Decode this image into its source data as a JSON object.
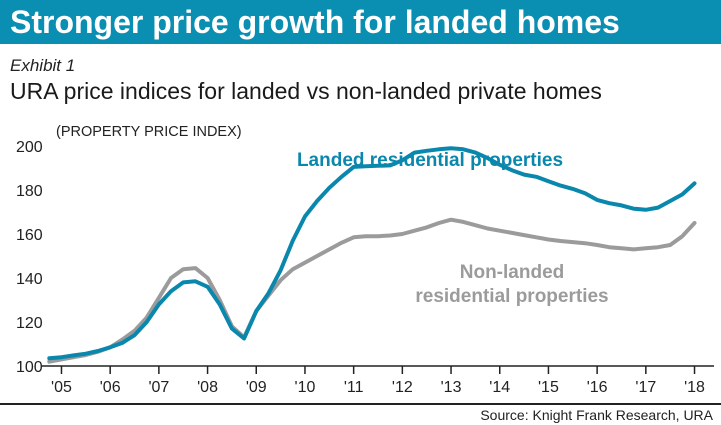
{
  "headline": "Stronger price growth for landed homes",
  "exhibit": "Exhibit 1",
  "subtitle": "URA price indices for landed vs non-landed private homes",
  "source": "Source: Knight Frank Research, URA",
  "colors": {
    "banner": "#0a8fb3",
    "landed": "#0a87ad",
    "nonlanded": "#9b9b9b",
    "text": "#222222"
  },
  "chart_data": {
    "type": "line",
    "ylabel": "(PROPERTY PRICE INDEX)",
    "ylim": [
      100,
      200
    ],
    "yticks": [
      100,
      120,
      140,
      160,
      180,
      200
    ],
    "xlim": [
      2004.6,
      2018.4
    ],
    "xticks": [
      {
        "label": "'05",
        "value": 2005
      },
      {
        "label": "'06",
        "value": 2006
      },
      {
        "label": "'07",
        "value": 2007
      },
      {
        "label": "'08",
        "value": 2008
      },
      {
        "label": "'09",
        "value": 2009
      },
      {
        "label": "'10",
        "value": 2010
      },
      {
        "label": "'11",
        "value": 2011
      },
      {
        "label": "'12",
        "value": 2012
      },
      {
        "label": "'13",
        "value": 2013
      },
      {
        "label": "'14",
        "value": 2014
      },
      {
        "label": "'15",
        "value": 2015
      },
      {
        "label": "'16",
        "value": 2016
      },
      {
        "label": "'17",
        "value": 2017
      },
      {
        "label": "'18",
        "value": 2018
      }
    ],
    "grid": false,
    "series": [
      {
        "name": "Landed residential properties",
        "points": [
          [
            2004.75,
            103.5
          ],
          [
            2005.0,
            104.0
          ],
          [
            2005.25,
            104.8
          ],
          [
            2005.5,
            105.6
          ],
          [
            2005.75,
            106.8
          ],
          [
            2006.0,
            108.5
          ],
          [
            2006.25,
            110.5
          ],
          [
            2006.5,
            114.0
          ],
          [
            2006.75,
            120.0
          ],
          [
            2007.0,
            128.0
          ],
          [
            2007.25,
            134.0
          ],
          [
            2007.5,
            138.0
          ],
          [
            2007.75,
            138.5
          ],
          [
            2008.0,
            136.0
          ],
          [
            2008.25,
            128.0
          ],
          [
            2008.5,
            117.0
          ],
          [
            2008.75,
            112.5
          ],
          [
            2009.0,
            125.0
          ],
          [
            2009.25,
            133.0
          ],
          [
            2009.5,
            143.5
          ],
          [
            2009.75,
            157.0
          ],
          [
            2010.0,
            168.0
          ],
          [
            2010.25,
            175.0
          ],
          [
            2010.5,
            181.0
          ],
          [
            2010.75,
            186.0
          ],
          [
            2011.0,
            190.5
          ],
          [
            2011.25,
            190.8
          ],
          [
            2011.5,
            191.0
          ],
          [
            2011.75,
            191.2
          ],
          [
            2012.0,
            193.5
          ],
          [
            2012.25,
            197.0
          ],
          [
            2012.5,
            197.8
          ],
          [
            2012.75,
            198.5
          ],
          [
            2013.0,
            199.0
          ],
          [
            2013.25,
            198.5
          ],
          [
            2013.5,
            197.0
          ],
          [
            2013.75,
            194.5
          ],
          [
            2014.0,
            191.5
          ],
          [
            2014.25,
            189.0
          ],
          [
            2014.5,
            187.0
          ],
          [
            2014.75,
            186.0
          ],
          [
            2015.0,
            184.0
          ],
          [
            2015.25,
            182.0
          ],
          [
            2015.5,
            180.5
          ],
          [
            2015.75,
            178.5
          ],
          [
            2016.0,
            175.5
          ],
          [
            2016.25,
            174.0
          ],
          [
            2016.5,
            173.0
          ],
          [
            2016.75,
            171.5
          ],
          [
            2017.0,
            171.0
          ],
          [
            2017.25,
            172.0
          ],
          [
            2017.5,
            175.0
          ],
          [
            2017.75,
            178.0
          ],
          [
            2018.0,
            183.0
          ]
        ]
      },
      {
        "name": "Non-landed residential properties",
        "points": [
          [
            2004.75,
            102.0
          ],
          [
            2005.0,
            103.0
          ],
          [
            2005.25,
            104.0
          ],
          [
            2005.5,
            105.0
          ],
          [
            2005.75,
            106.5
          ],
          [
            2006.0,
            108.5
          ],
          [
            2006.25,
            112.0
          ],
          [
            2006.5,
            116.0
          ],
          [
            2006.75,
            122.0
          ],
          [
            2007.0,
            131.0
          ],
          [
            2007.25,
            140.0
          ],
          [
            2007.5,
            144.0
          ],
          [
            2007.75,
            144.5
          ],
          [
            2008.0,
            140.0
          ],
          [
            2008.25,
            130.0
          ],
          [
            2008.5,
            118.0
          ],
          [
            2008.75,
            113.0
          ],
          [
            2009.0,
            125.0
          ],
          [
            2009.25,
            132.0
          ],
          [
            2009.5,
            139.0
          ],
          [
            2009.75,
            144.0
          ],
          [
            2010.0,
            147.0
          ],
          [
            2010.25,
            150.0
          ],
          [
            2010.5,
            153.0
          ],
          [
            2010.75,
            156.0
          ],
          [
            2011.0,
            158.5
          ],
          [
            2011.25,
            159.0
          ],
          [
            2011.5,
            159.0
          ],
          [
            2011.75,
            159.3
          ],
          [
            2012.0,
            160.0
          ],
          [
            2012.25,
            161.5
          ],
          [
            2012.5,
            163.0
          ],
          [
            2012.75,
            165.0
          ],
          [
            2013.0,
            166.5
          ],
          [
            2013.25,
            165.5
          ],
          [
            2013.5,
            164.0
          ],
          [
            2013.75,
            162.5
          ],
          [
            2014.0,
            161.5
          ],
          [
            2014.25,
            160.5
          ],
          [
            2014.5,
            159.5
          ],
          [
            2014.75,
            158.5
          ],
          [
            2015.0,
            157.5
          ],
          [
            2015.25,
            156.8
          ],
          [
            2015.5,
            156.3
          ],
          [
            2015.75,
            155.8
          ],
          [
            2016.0,
            155.0
          ],
          [
            2016.25,
            154.0
          ],
          [
            2016.5,
            153.5
          ],
          [
            2016.75,
            153.0
          ],
          [
            2017.0,
            153.5
          ],
          [
            2017.25,
            154.0
          ],
          [
            2017.5,
            155.0
          ],
          [
            2017.75,
            159.0
          ],
          [
            2018.0,
            165.0
          ]
        ]
      }
    ],
    "annotations": [
      {
        "series": 0,
        "text": [
          "Landed residential properties"
        ]
      },
      {
        "series": 1,
        "text": [
          "Non-landed",
          "residential properties"
        ]
      }
    ]
  }
}
